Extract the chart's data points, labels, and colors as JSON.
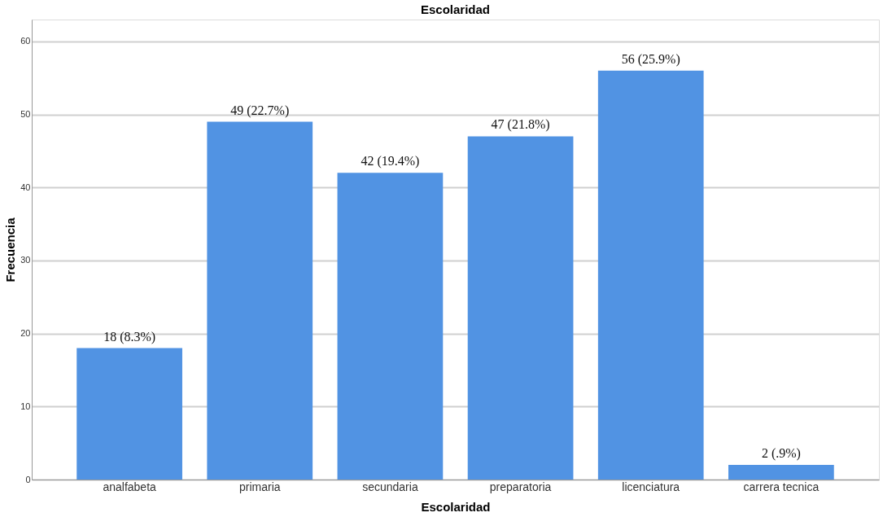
{
  "chart_data": {
    "type": "bar",
    "title": "Escolaridad",
    "xlabel": "Escolaridad",
    "ylabel": "Frecuencia",
    "categories": [
      "analfabeta",
      "primaria",
      "secundaria",
      "preparatoria",
      "licenciatura",
      "carrera tecnica"
    ],
    "values": [
      18,
      49,
      42,
      47,
      56,
      2
    ],
    "value_labels": [
      "18 (8.3%)",
      "49 (22.7%)",
      "42 (19.4%)",
      "47 (21.8%)",
      "56 (25.9%)",
      "2 (.9%)"
    ],
    "color": "#5193e3",
    "ylim": [
      0,
      63
    ],
    "yticks": [
      0,
      10,
      20,
      30,
      40,
      50,
      60
    ],
    "grid": "y"
  }
}
